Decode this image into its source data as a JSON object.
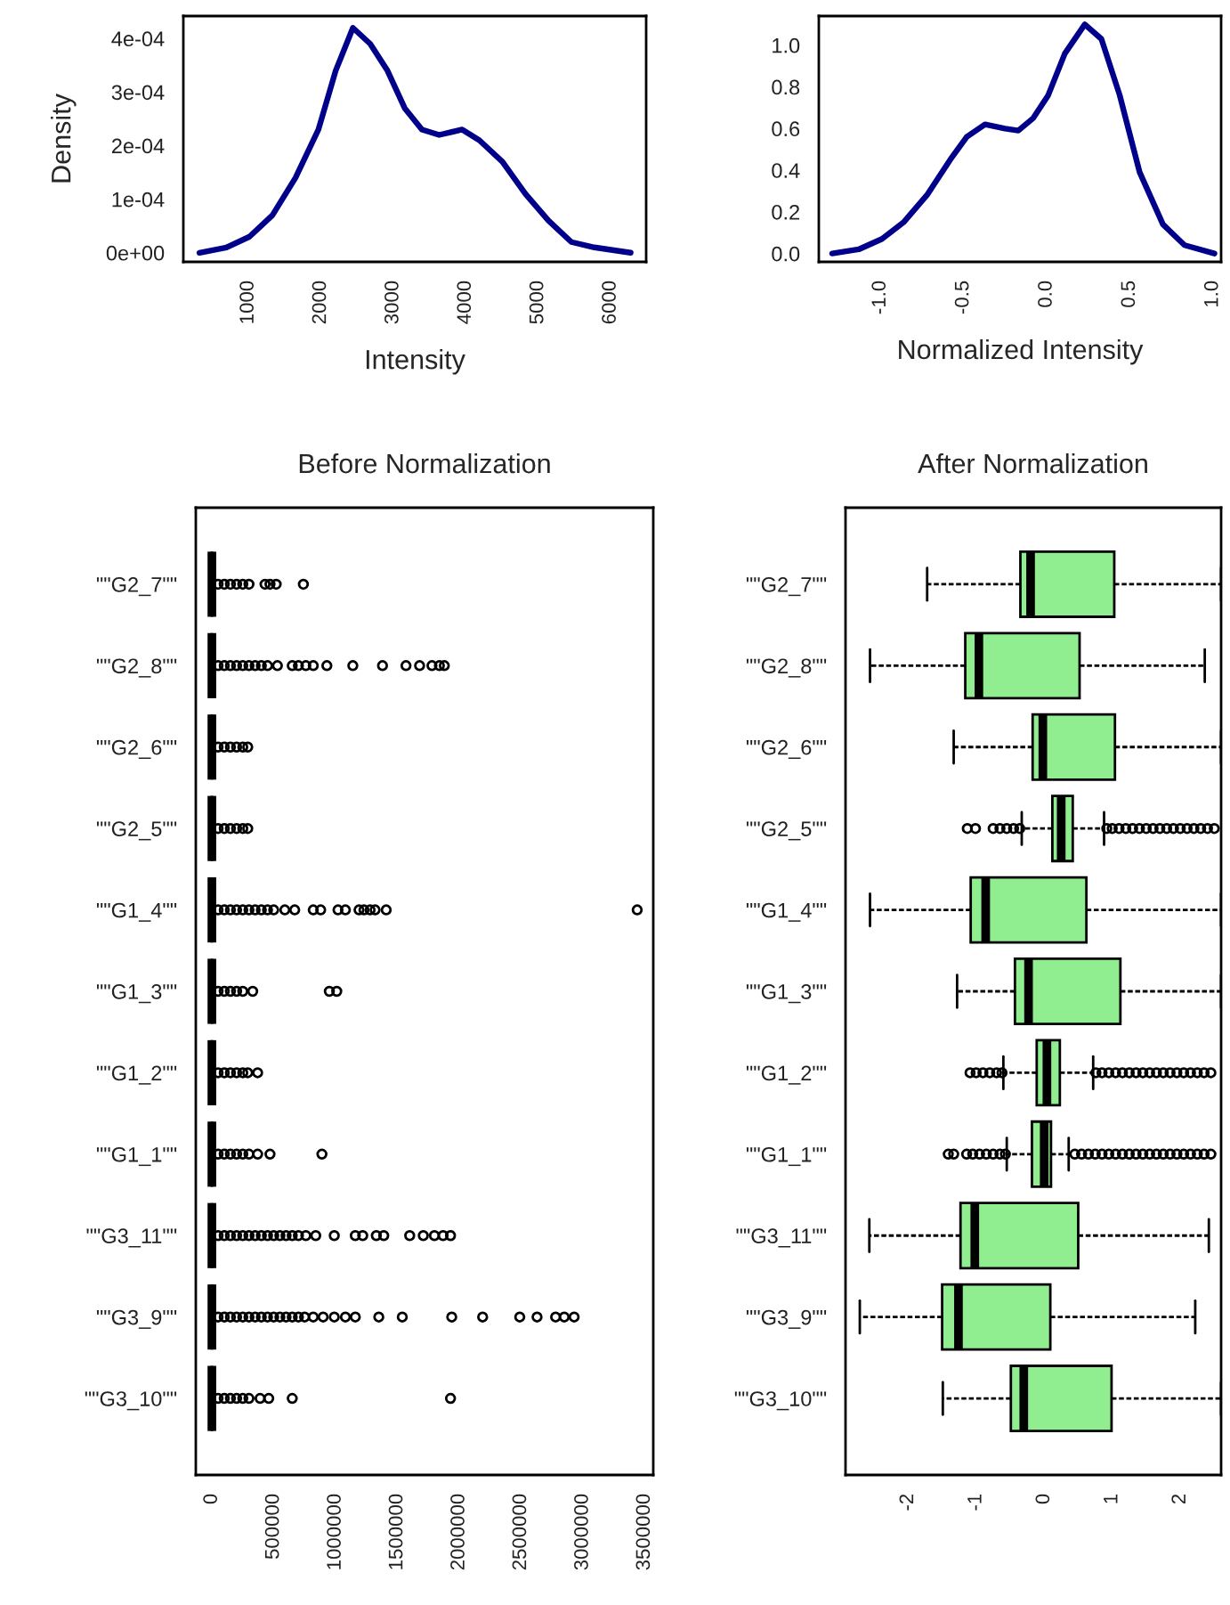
{
  "chart_data": [
    {
      "type": "line",
      "xlabel": "Intensity",
      "ylabel": "Density",
      "series": [
        {
          "color": "#00008b",
          "x": [
            325,
            698,
            1016,
            1333,
            1651,
            1968,
            2206,
            2444,
            2683,
            2921,
            3159,
            3397,
            3635,
            3952,
            4190,
            4508,
            4825,
            5143,
            5460,
            5778,
            6278
          ],
          "values": [
            0,
            1e-05,
            3e-05,
            7e-05,
            0.00014,
            0.00023,
            0.00034,
            0.00042,
            0.00039,
            0.00034,
            0.00027,
            0.00023,
            0.00022,
            0.00023,
            0.00021,
            0.00017,
            0.00011,
            6e-05,
            2e-05,
            1e-05,
            0
          ]
        }
      ],
      "xlim": [
        103,
        6492
      ],
      "xticks": [
        1000,
        2000,
        3000,
        4000,
        5000,
        6000
      ],
      "ylim": [
        -1.7e-05,
        0.000442
      ],
      "yticks": [
        {
          "value": 0,
          "label": "0e+00"
        },
        {
          "value": 0.0001,
          "label": "1e-04"
        },
        {
          "value": 0.0002,
          "label": "2e-04"
        },
        {
          "value": 0.0003,
          "label": "3e-04"
        },
        {
          "value": 0.0004,
          "label": "4e-04"
        }
      ]
    },
    {
      "type": "line",
      "xlabel": "Normalized Intensity",
      "series": [
        {
          "color": "#00008b",
          "x": [
            -1.29,
            -1.13,
            -0.99,
            -0.86,
            -0.72,
            -0.58,
            -0.48,
            -0.37,
            -0.25,
            -0.17,
            -0.08,
            0.01,
            0.11,
            0.23,
            0.33,
            0.44,
            0.56,
            0.7,
            0.83,
            1.01
          ],
          "values": [
            0,
            0.02,
            0.07,
            0.15,
            0.28,
            0.45,
            0.56,
            0.62,
            0.6,
            0.59,
            0.65,
            0.76,
            0.96,
            1.1,
            1.03,
            0.76,
            0.39,
            0.14,
            0.04,
            0
          ]
        }
      ],
      "xlim": [
        -1.37,
        1.05
      ],
      "xticks": [
        {
          "value": -1,
          "label": "-1.0"
        },
        -0.5,
        {
          "value": 0,
          "label": "0.0"
        },
        0.5,
        {
          "value": 1,
          "label": "1.0"
        }
      ],
      "ylim": [
        -0.04,
        1.14
      ],
      "yticks": [
        {
          "value": 0,
          "label": "0.0"
        },
        0.2,
        0.4,
        0.6,
        0.8,
        {
          "value": 1,
          "label": "1.0"
        }
      ]
    },
    {
      "type": "box",
      "orientation": "horizontal",
      "title": "Before Normalization",
      "categories": [
        "\"\"G2_7\"\"",
        "\"\"G2_8\"\"",
        "\"\"G2_6\"\"",
        "\"\"G2_5\"\"",
        "\"\"G1_4\"\"",
        "\"\"G1_3\"\"",
        "\"\"G1_2\"\"",
        "\"\"G1_1\"\"",
        "\"\"G3_11\"\"",
        "\"\"G3_9\"\"",
        "\"\"G3_10\"\""
      ],
      "boxes": [
        {
          "low": 0,
          "q1": 0,
          "median": 0,
          "q3": 0,
          "high": 0,
          "outliers": [
            50000,
            100000,
            150000,
            200000,
            250000,
            300000,
            430000,
            470000,
            520000,
            740000
          ]
        },
        {
          "low": 0,
          "q1": 0,
          "median": 0,
          "q3": 0,
          "high": 0,
          "outliers": [
            50000,
            100000,
            150000,
            200000,
            250000,
            300000,
            350000,
            400000,
            450000,
            530000,
            650000,
            700000,
            760000,
            820000,
            930000,
            1140000,
            1380000,
            1570000,
            1680000,
            1780000,
            1840000,
            1880000
          ]
        },
        {
          "low": 0,
          "q1": 0,
          "median": 0,
          "q3": 0,
          "high": 0,
          "outliers": [
            50000,
            100000,
            150000,
            200000,
            250000,
            290000
          ]
        },
        {
          "low": 0,
          "q1": 0,
          "median": 0,
          "q3": 0,
          "high": 0,
          "outliers": [
            50000,
            100000,
            150000,
            200000,
            250000,
            290000
          ]
        },
        {
          "low": 0,
          "q1": 0,
          "median": 0,
          "q3": 0,
          "high": 0,
          "outliers": [
            50000,
            100000,
            150000,
            200000,
            250000,
            300000,
            350000,
            400000,
            450000,
            500000,
            590000,
            670000,
            820000,
            880000,
            1020000,
            1080000,
            1190000,
            1230000,
            1280000,
            1320000,
            1410000,
            3440000
          ]
        },
        {
          "low": 0,
          "q1": 0,
          "median": 0,
          "q3": 0,
          "high": 0,
          "outliers": [
            50000,
            100000,
            150000,
            200000,
            250000,
            330000,
            950000,
            1010000
          ]
        },
        {
          "low": 0,
          "q1": 0,
          "median": 0,
          "q3": 0,
          "high": 0,
          "outliers": [
            50000,
            100000,
            150000,
            200000,
            250000,
            290000,
            370000
          ]
        },
        {
          "low": 0,
          "q1": 0,
          "median": 0,
          "q3": 0,
          "high": 0,
          "outliers": [
            50000,
            100000,
            150000,
            200000,
            250000,
            300000,
            370000,
            470000,
            890000
          ]
        },
        {
          "low": 0,
          "q1": 0,
          "median": 0,
          "q3": 0,
          "high": 0,
          "outliers": [
            50000,
            100000,
            150000,
            200000,
            250000,
            300000,
            350000,
            400000,
            450000,
            500000,
            550000,
            600000,
            650000,
            700000,
            760000,
            840000,
            990000,
            1160000,
            1220000,
            1330000,
            1390000,
            1600000,
            1710000,
            1800000,
            1870000,
            1930000
          ]
        },
        {
          "low": 0,
          "q1": 0,
          "median": 0,
          "q3": 0,
          "high": 0,
          "outliers": [
            50000,
            100000,
            150000,
            200000,
            250000,
            300000,
            350000,
            400000,
            450000,
            500000,
            550000,
            600000,
            650000,
            700000,
            750000,
            820000,
            900000,
            990000,
            1080000,
            1160000,
            1350000,
            1540000,
            1940000,
            2190000,
            2490000,
            2630000,
            2780000,
            2850000,
            2930000
          ]
        },
        {
          "low": 0,
          "q1": 0,
          "median": 0,
          "q3": 0,
          "high": 0,
          "outliers": [
            50000,
            100000,
            150000,
            200000,
            250000,
            300000,
            390000,
            460000,
            650000,
            1930000
          ]
        }
      ],
      "xlim": [
        -130000,
        3570000
      ],
      "xticks": [
        0,
        500000,
        1000000,
        1500000,
        2000000,
        2500000,
        3000000,
        3500000
      ]
    },
    {
      "type": "box",
      "orientation": "horizontal",
      "title": "After Normalization",
      "color": "#90ee90",
      "categories": [
        "\"\"G2_7\"\"",
        "\"\"G2_8\"\"",
        "\"\"G2_6\"\"",
        "\"\"G2_5\"\"",
        "\"\"G1_4\"\"",
        "\"\"G1_3\"\"",
        "\"\"G1_2\"\"",
        "\"\"G1_1\"\"",
        "\"\"G3_11\"\"",
        "\"\"G3_9\"\"",
        "\"\"G3_10\"\""
      ],
      "boxes": [
        {
          "low": -1.72,
          "q1": -0.35,
          "median": -0.2,
          "q3": 1.03,
          "high": 2.6
        },
        {
          "low": -2.56,
          "q1": -1.16,
          "median": -0.96,
          "q3": 0.52,
          "high": 2.36
        },
        {
          "low": -1.33,
          "q1": -0.17,
          "median": -0.02,
          "q3": 1.04,
          "high": 2.6
        },
        {
          "low": -0.33,
          "q1": 0.12,
          "median": 0.25,
          "q3": 0.42,
          "high": 0.88,
          "outliers": [
            -1.13,
            -1.01,
            -0.75,
            -0.65,
            -0.55,
            -0.45,
            -0.36,
            0.92,
            1.0,
            1.1,
            1.2,
            1.3,
            1.4,
            1.5,
            1.6,
            1.7,
            1.8,
            1.9,
            2.0,
            2.1,
            2.2,
            2.3,
            2.4,
            2.5
          ]
        },
        {
          "low": -2.56,
          "q1": -1.08,
          "median": -0.86,
          "q3": 0.62,
          "high": 2.6
        },
        {
          "low": -1.28,
          "q1": -0.43,
          "median": -0.23,
          "q3": 1.12,
          "high": 2.6
        },
        {
          "low": -0.6,
          "q1": -0.11,
          "median": 0.04,
          "q3": 0.23,
          "high": 0.72,
          "outliers": [
            -1.09,
            -1.0,
            -0.9,
            -0.8,
            -0.7,
            -0.62,
            0.76,
            0.85,
            0.95,
            1.05,
            1.15,
            1.25,
            1.35,
            1.45,
            1.55,
            1.65,
            1.75,
            1.85,
            1.95,
            2.05,
            2.15,
            2.25,
            2.35,
            2.45
          ]
        },
        {
          "low": -0.55,
          "q1": -0.18,
          "median": 0,
          "q3": 0.1,
          "high": 0.36,
          "outliers": [
            -1.41,
            -1.33,
            -1.14,
            -1.05,
            -0.95,
            -0.85,
            -0.75,
            -0.65,
            -0.57,
            0.45,
            0.55,
            0.65,
            0.75,
            0.85,
            0.95,
            1.05,
            1.15,
            1.25,
            1.35,
            1.45,
            1.55,
            1.65,
            1.75,
            1.85,
            1.95,
            2.05,
            2.15,
            2.25,
            2.35,
            2.45
          ]
        },
        {
          "low": -2.57,
          "q1": -1.23,
          "median": -1.02,
          "q3": 0.5,
          "high": 2.42
        },
        {
          "low": -2.71,
          "q1": -1.5,
          "median": -1.26,
          "q3": 0.09,
          "high": 2.22
        },
        {
          "low": -1.49,
          "q1": -0.49,
          "median": -0.3,
          "q3": 0.99,
          "high": 2.6
        }
      ],
      "xlim": [
        -2.92,
        2.6
      ],
      "xticks": [
        -2,
        -1,
        0,
        1,
        2
      ]
    }
  ]
}
